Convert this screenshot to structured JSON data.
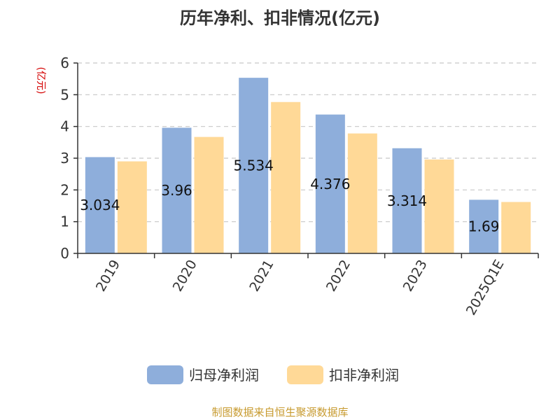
{
  "chart_data": {
    "type": "bar",
    "title": "历年净利、扣非情况(亿元)",
    "ylabel": "(亿元)",
    "ylim": [
      0,
      6
    ],
    "yticks": [
      0,
      1,
      2,
      3,
      4,
      5,
      6
    ],
    "grid": true,
    "legend_position": "bottom",
    "categories": [
      "2019",
      "2020",
      "2021",
      "2022",
      "2023",
      "2025Q1E"
    ],
    "series": [
      {
        "name": "归母净利润",
        "color": "#8eaedb",
        "values": [
          3.034,
          3.96,
          5.534,
          4.376,
          3.314,
          1.69
        ],
        "labels": [
          "3.034",
          "3.96",
          "5.534",
          "4.376",
          "3.314",
          "1.69"
        ]
      },
      {
        "name": "扣非净利润",
        "color": "#ffd997",
        "values": [
          2.9,
          3.67,
          4.77,
          3.78,
          2.96,
          1.62
        ]
      }
    ]
  },
  "source": "制图数据来自恒生聚源数据库"
}
